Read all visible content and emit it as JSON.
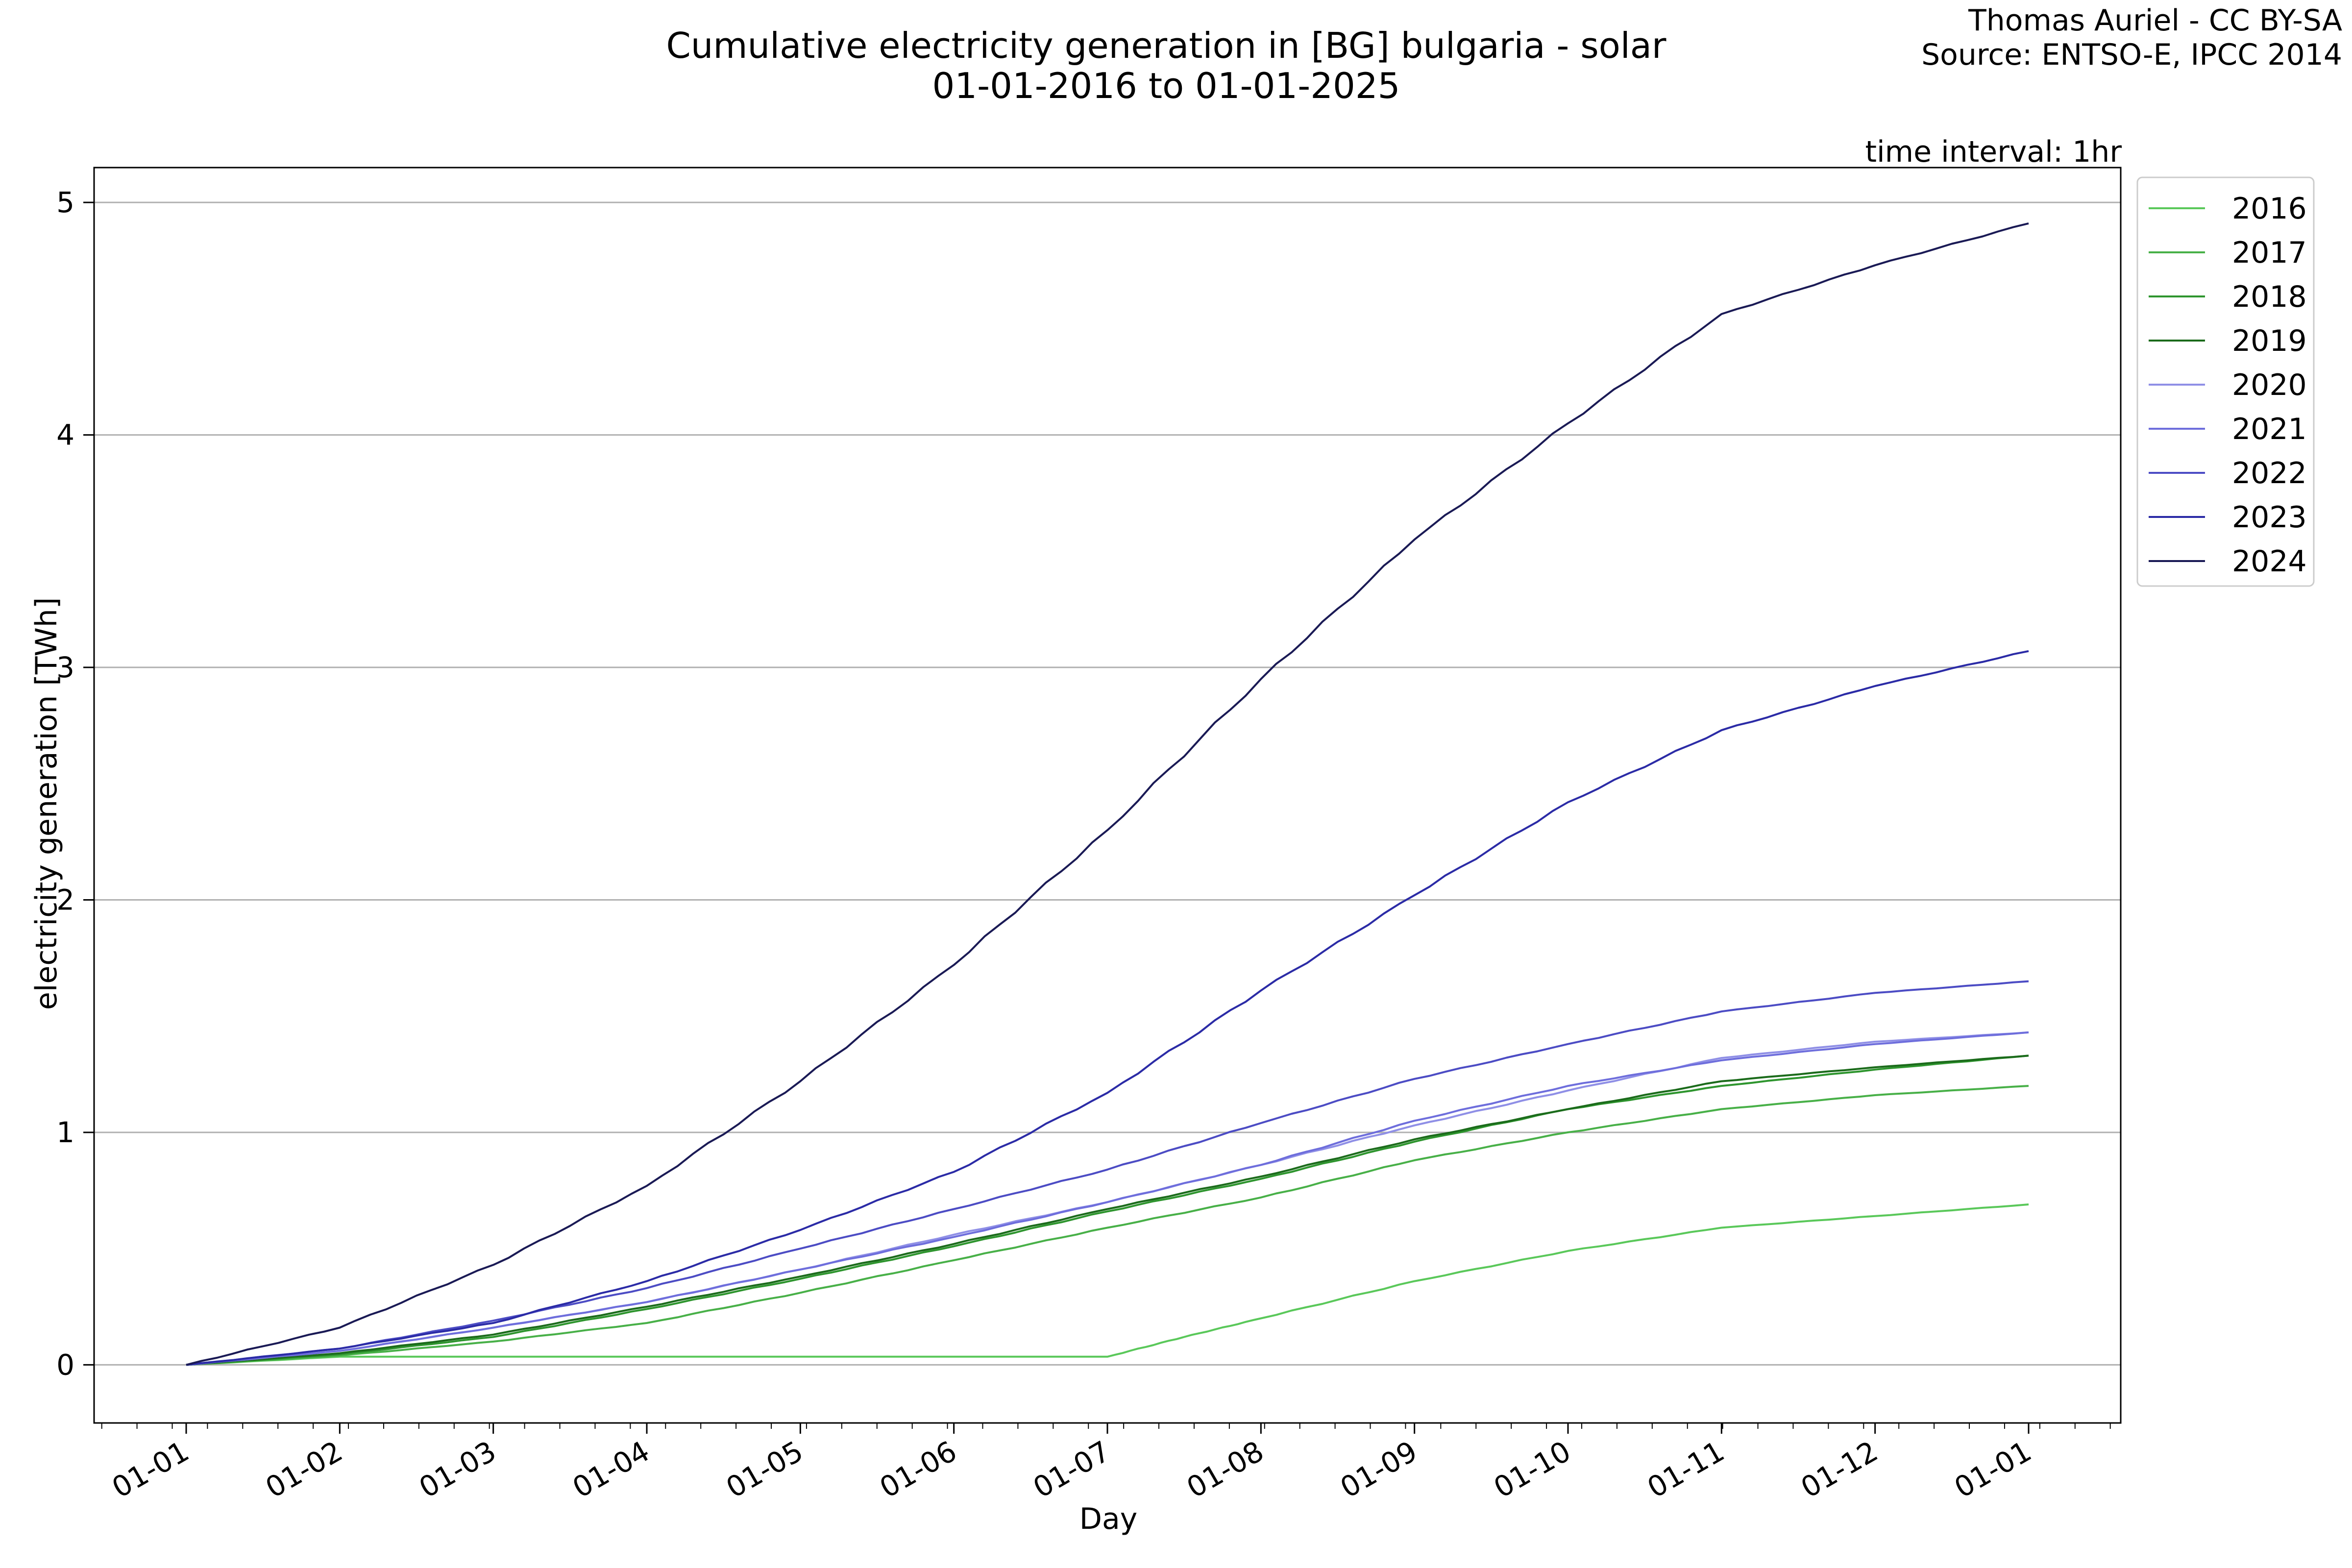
{
  "header": {
    "title_line1": "Cumulative electricity generation in [BG] bulgaria - solar",
    "title_line2": "01-01-2016 to 01-01-2025",
    "credit_line1": "Thomas Auriel - CC BY-SA",
    "credit_line2": "Source: ENTSO-E, IPCC 2014",
    "interval_note": "time interval: 1hr"
  },
  "chart_data": {
    "type": "line",
    "xlabel": "Day",
    "ylabel": "electricity generation [TWh]",
    "ylim": [
      -0.25,
      5.15
    ],
    "xlim": [
      -0.6,
      12.6
    ],
    "grid": "horizontal",
    "legend_position": "outside-top-right",
    "x_ticks": [
      {
        "value": 0,
        "label": "01-01"
      },
      {
        "value": 1,
        "label": "01-02"
      },
      {
        "value": 2,
        "label": "01-03"
      },
      {
        "value": 3,
        "label": "01-04"
      },
      {
        "value": 4,
        "label": "01-05"
      },
      {
        "value": 5,
        "label": "01-06"
      },
      {
        "value": 6,
        "label": "01-07"
      },
      {
        "value": 7,
        "label": "01-08"
      },
      {
        "value": 8,
        "label": "01-09"
      },
      {
        "value": 9,
        "label": "01-10"
      },
      {
        "value": 10,
        "label": "01-11"
      },
      {
        "value": 11,
        "label": "01-12"
      },
      {
        "value": 12,
        "label": "01-01"
      }
    ],
    "y_ticks": [
      {
        "value": 0,
        "label": "0"
      },
      {
        "value": 1,
        "label": "1"
      },
      {
        "value": 2,
        "label": "2"
      },
      {
        "value": 3,
        "label": "3"
      },
      {
        "value": 4,
        "label": "4"
      },
      {
        "value": 5,
        "label": "5"
      }
    ],
    "series": [
      {
        "name": "2016",
        "color": "#5ac85a",
        "points": [
          [
            0,
            0
          ],
          [
            1,
            0.035
          ],
          [
            2,
            0.035
          ],
          [
            3,
            0.035
          ],
          [
            4,
            0.035
          ],
          [
            5,
            0.035
          ],
          [
            6,
            0.035
          ],
          [
            6.5,
            0.12
          ],
          [
            7,
            0.2
          ],
          [
            8,
            0.36
          ],
          [
            9,
            0.49
          ],
          [
            10,
            0.59
          ],
          [
            11,
            0.64
          ],
          [
            12,
            0.69
          ]
        ]
      },
      {
        "name": "2017",
        "color": "#48b048",
        "points": [
          [
            0,
            0
          ],
          [
            1,
            0.04
          ],
          [
            2,
            0.1
          ],
          [
            3,
            0.18
          ],
          [
            4,
            0.31
          ],
          [
            5,
            0.45
          ],
          [
            6,
            0.59
          ],
          [
            7,
            0.72
          ],
          [
            8,
            0.88
          ],
          [
            9,
            1.0
          ],
          [
            10,
            1.1
          ],
          [
            11,
            1.16
          ],
          [
            12,
            1.2
          ]
        ]
      },
      {
        "name": "2018",
        "color": "#2e952e",
        "points": [
          [
            0,
            0
          ],
          [
            1,
            0.045
          ],
          [
            2,
            0.12
          ],
          [
            3,
            0.24
          ],
          [
            4,
            0.37
          ],
          [
            5,
            0.51
          ],
          [
            6,
            0.66
          ],
          [
            7,
            0.8
          ],
          [
            8,
            0.96
          ],
          [
            9,
            1.1
          ],
          [
            10,
            1.2
          ],
          [
            11,
            1.27
          ],
          [
            12,
            1.33
          ]
        ]
      },
      {
        "name": "2019",
        "color": "#1b6b1b",
        "points": [
          [
            0,
            0
          ],
          [
            1,
            0.05
          ],
          [
            2,
            0.13
          ],
          [
            3,
            0.25
          ],
          [
            4,
            0.38
          ],
          [
            5,
            0.52
          ],
          [
            6,
            0.67
          ],
          [
            7,
            0.81
          ],
          [
            8,
            0.97
          ],
          [
            9,
            1.1
          ],
          [
            10,
            1.22
          ],
          [
            11,
            1.28
          ],
          [
            12,
            1.33
          ]
        ]
      },
      {
        "name": "2020",
        "color": "#8f8fe6",
        "points": [
          [
            0,
            0
          ],
          [
            1,
            0.06
          ],
          [
            2,
            0.16
          ],
          [
            3,
            0.27
          ],
          [
            4,
            0.41
          ],
          [
            5,
            0.56
          ],
          [
            6,
            0.7
          ],
          [
            7,
            0.86
          ],
          [
            8,
            1.03
          ],
          [
            9,
            1.18
          ],
          [
            10,
            1.32
          ],
          [
            11,
            1.39
          ],
          [
            12,
            1.43
          ]
        ]
      },
      {
        "name": "2021",
        "color": "#6e6edc",
        "points": [
          [
            0,
            0
          ],
          [
            1,
            0.06
          ],
          [
            2,
            0.16
          ],
          [
            3,
            0.27
          ],
          [
            4,
            0.41
          ],
          [
            5,
            0.55
          ],
          [
            6,
            0.7
          ],
          [
            7,
            0.86
          ],
          [
            8,
            1.05
          ],
          [
            9,
            1.2
          ],
          [
            10,
            1.31
          ],
          [
            11,
            1.38
          ],
          [
            12,
            1.43
          ]
        ]
      },
      {
        "name": "2022",
        "color": "#4c4cc4",
        "points": [
          [
            0,
            0
          ],
          [
            1,
            0.07
          ],
          [
            2,
            0.19
          ],
          [
            3,
            0.33
          ],
          [
            4,
            0.5
          ],
          [
            5,
            0.67
          ],
          [
            6,
            0.84
          ],
          [
            7,
            1.04
          ],
          [
            8,
            1.23
          ],
          [
            9,
            1.38
          ],
          [
            10,
            1.52
          ],
          [
            11,
            1.6
          ],
          [
            12,
            1.65
          ]
        ]
      },
      {
        "name": "2023",
        "color": "#2b2ba6",
        "points": [
          [
            0,
            0
          ],
          [
            1,
            0.07
          ],
          [
            2,
            0.18
          ],
          [
            3,
            0.36
          ],
          [
            4,
            0.58
          ],
          [
            5,
            0.83
          ],
          [
            6,
            1.17
          ],
          [
            7,
            1.61
          ],
          [
            8,
            2.02
          ],
          [
            9,
            2.42
          ],
          [
            10,
            2.73
          ],
          [
            11,
            2.92
          ],
          [
            12,
            3.07
          ]
        ]
      },
      {
        "name": "2024",
        "color": "#1a1a55",
        "points": [
          [
            0,
            0
          ],
          [
            1,
            0.16
          ],
          [
            2,
            0.43
          ],
          [
            3,
            0.77
          ],
          [
            4,
            1.22
          ],
          [
            5,
            1.72
          ],
          [
            6,
            2.3
          ],
          [
            7,
            2.95
          ],
          [
            8,
            3.55
          ],
          [
            9,
            4.05
          ],
          [
            10,
            4.52
          ],
          [
            11,
            4.73
          ],
          [
            12,
            4.91
          ]
        ]
      }
    ]
  }
}
